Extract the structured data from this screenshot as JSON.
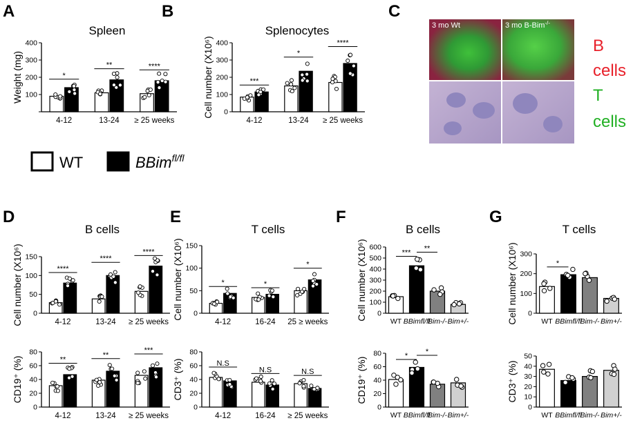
{
  "panels": [
    {
      "id": "A",
      "label": "A",
      "title": "Spleen"
    },
    {
      "id": "B",
      "label": "B",
      "title": "Splenocytes"
    },
    {
      "id": "C",
      "label": "C"
    },
    {
      "id": "D",
      "label": "D",
      "title": "B cells"
    },
    {
      "id": "E",
      "label": "E",
      "title": "T cells"
    },
    {
      "id": "F",
      "label": "F",
      "title": "B cells"
    },
    {
      "id": "G",
      "label": "G",
      "title": "T cells"
    }
  ],
  "legend": {
    "wt": "WT",
    "ko_base": "BBim",
    "ko_sup": "fl/fl"
  },
  "micrograph": {
    "left_label": "3 mo Wt",
    "right_label": "3 mo B-Bim",
    "right_label_sup": "-/-",
    "side_text": [
      {
        "text": "B",
        "color": "#e8202a"
      },
      {
        "text": "cells",
        "color": "#e8202a"
      },
      {
        "text": "T",
        "color": "#21b023"
      },
      {
        "text": "cells",
        "color": "#21b023"
      }
    ]
  },
  "chart_data": [
    {
      "id": "A",
      "type": "bar",
      "title": "Spleen",
      "ylabel": "Weight (mg)",
      "ylim": [
        0,
        400
      ],
      "yticks": [
        "",
        "100",
        "200",
        "300",
        "400"
      ],
      "categories": [
        "4-12",
        "13-24",
        "≥ 25 weeks"
      ],
      "series": [
        {
          "name": "WT",
          "values": [
            90,
            110,
            105
          ]
        },
        {
          "name": "BBimfl/fl",
          "values": [
            140,
            185,
            180
          ]
        }
      ],
      "significance": [
        "*",
        "**",
        "****"
      ]
    },
    {
      "id": "B",
      "type": "bar",
      "title": "Splenocytes",
      "ylabel": "Cell number (X10⁶)",
      "ylim": [
        0,
        400
      ],
      "yticks": [
        "0",
        "100",
        "200",
        "300",
        "400"
      ],
      "categories": [
        "4-12",
        "13-24",
        "≥ 25 weeks"
      ],
      "series": [
        {
          "name": "WT",
          "values": [
            85,
            150,
            170
          ]
        },
        {
          "name": "BBimfl/fl",
          "values": [
            115,
            235,
            280
          ]
        }
      ],
      "significance": [
        "***",
        "*",
        "****"
      ]
    },
    {
      "id": "D-top",
      "type": "bar",
      "title": "B cells",
      "ylabel": "Cell number (X10⁶)",
      "ylim": [
        0,
        150
      ],
      "yticks": [
        "0",
        "50",
        "100",
        "150"
      ],
      "categories": [
        "4-12",
        "13-24",
        "≥ 25 weeks"
      ],
      "series": [
        {
          "name": "WT",
          "values": [
            28,
            38,
            58
          ]
        },
        {
          "name": "BBimfl/fl",
          "values": [
            80,
            100,
            125
          ]
        }
      ],
      "significance": [
        "****",
        "****",
        "****"
      ]
    },
    {
      "id": "D-bottom",
      "type": "bar",
      "ylabel": "CD19⁺ (%)",
      "ylim": [
        0,
        80
      ],
      "yticks": [
        "0",
        "20",
        "40",
        "60",
        "80"
      ],
      "categories": [
        "4-12",
        "13-24",
        "≥ 25 weeks"
      ],
      "series": [
        {
          "name": "WT",
          "values": [
            31,
            39,
            46
          ]
        },
        {
          "name": "BBimfl/fl",
          "values": [
            47,
            52,
            57
          ]
        }
      ],
      "significance": [
        "**",
        "**",
        "***"
      ]
    },
    {
      "id": "E-top",
      "type": "bar",
      "title": "T cells",
      "ylabel": "Cell number (X10⁶)",
      "ylim": [
        0,
        150
      ],
      "yticks": [
        "0",
        "50",
        "100",
        "150"
      ],
      "categories": [
        "4-12",
        "16-24",
        "25 ≥ weeks"
      ],
      "series": [
        {
          "name": "WT",
          "values": [
            22,
            35,
            50
          ]
        },
        {
          "name": "BBimfl/fl",
          "values": [
            44,
            42,
            74
          ]
        }
      ],
      "significance": [
        "*",
        "*",
        "*"
      ]
    },
    {
      "id": "E-bottom",
      "type": "bar",
      "ylabel": "CD3⁺ (%)",
      "ylim": [
        0,
        80
      ],
      "yticks": [
        "0",
        "20",
        "40",
        "60",
        "80"
      ],
      "categories": [
        "4-12",
        "16-24",
        "≥ 25 weeks"
      ],
      "series": [
        {
          "name": "WT",
          "values": [
            43,
            36,
            34
          ]
        },
        {
          "name": "BBimfl/fl",
          "values": [
            38,
            32,
            27
          ]
        }
      ],
      "significance": [
        "N.S",
        "N.S",
        "N.S"
      ]
    },
    {
      "id": "F-top",
      "type": "bar",
      "title": "B cells",
      "ylabel": "Cell number (X10⁶)",
      "ylim": [
        0,
        600
      ],
      "yticks": [
        "0",
        "100",
        "200",
        "300",
        "400",
        "500",
        "600"
      ],
      "categories": [
        "WT",
        "BBimfl/fl",
        "Bim-/-",
        "Bim+/-"
      ],
      "values": [
        150,
        430,
        200,
        80
      ],
      "fills": [
        "#ffffff",
        "#000000",
        "#808080",
        "#d0d0d0"
      ],
      "significance": [
        {
          "from": 0,
          "to": 1,
          "text": "***"
        },
        {
          "from": 1,
          "to": 2,
          "text": "**"
        }
      ]
    },
    {
      "id": "F-bottom",
      "type": "bar",
      "ylabel": "CD19⁺ (%)",
      "ylim": [
        0,
        80
      ],
      "yticks": [
        "0",
        "20",
        "40",
        "60",
        "80"
      ],
      "categories": [
        "WT",
        "BBimfl/fl",
        "Bim-/-",
        "Bim+/-"
      ],
      "values": [
        41,
        59,
        34,
        36
      ],
      "fills": [
        "#ffffff",
        "#000000",
        "#808080",
        "#d0d0d0"
      ],
      "significance": [
        {
          "from": 0,
          "to": 1,
          "text": "*"
        },
        {
          "from": 1,
          "to": 2,
          "text": "*"
        }
      ]
    },
    {
      "id": "G-top",
      "type": "bar",
      "title": "T cells",
      "ylabel": "Cell number (X10⁶)",
      "ylim": [
        0,
        300
      ],
      "yticks": [
        "0",
        "100",
        "200",
        "300"
      ],
      "categories": [
        "WT",
        "BBimfl/fl",
        "Bim-/-",
        "Bim+/-"
      ],
      "values": [
        135,
        195,
        180,
        75
      ],
      "fills": [
        "#ffffff",
        "#000000",
        "#808080",
        "#d0d0d0"
      ],
      "significance": [
        {
          "from": 0,
          "to": 1,
          "text": "*"
        }
      ]
    },
    {
      "id": "G-bottom",
      "type": "bar",
      "ylabel": "CD3⁺ (%)",
      "ylim": [
        0,
        50
      ],
      "yticks": [
        "0",
        "10",
        "20",
        "30",
        "40",
        "50"
      ],
      "categories": [
        "WT",
        "BBimfl/fl",
        "Bim-/-",
        "Bim+/-"
      ],
      "values": [
        37,
        26,
        30,
        36
      ],
      "fills": [
        "#ffffff",
        "#000000",
        "#808080",
        "#d0d0d0"
      ],
      "significance": []
    }
  ]
}
